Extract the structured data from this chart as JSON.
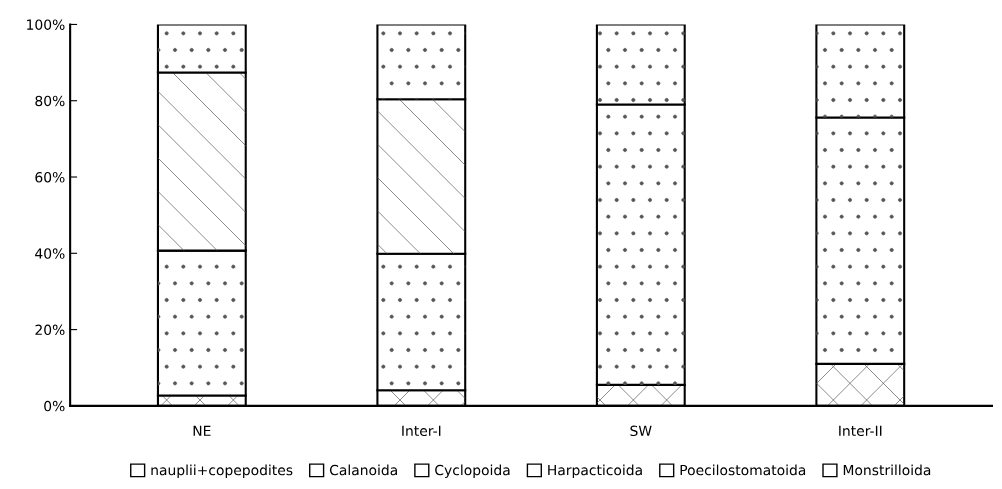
{
  "chart_data": {
    "type": "bar",
    "stacked": true,
    "categories": [
      "NE",
      "Inter-I",
      "SW",
      "Inter-II"
    ],
    "series": [
      {
        "name": "nauplii+copepodites",
        "color": "#ffffff",
        "values": [
          2.7,
          4.1,
          5.5,
          11.0
        ]
      },
      {
        "name": "Calanoida",
        "color": "#ffffff",
        "values": [
          38.0,
          35.8,
          73.5,
          64.6
        ]
      },
      {
        "name": "Cyclopoida",
        "color": "#ffffff",
        "values": [
          46.7,
          40.5,
          0,
          0
        ]
      },
      {
        "name": "Harpacticoida",
        "color": "#ffffff",
        "values": [
          12.6,
          19.6,
          21.0,
          24.4
        ]
      },
      {
        "name": "Poecilostomatoida",
        "color": "#ffffff",
        "values": [
          0,
          0,
          0,
          0
        ]
      },
      {
        "name": "Monstrilloida",
        "color": "#ffffff",
        "values": [
          0,
          0,
          0,
          0
        ]
      }
    ],
    "ylim": [
      0,
      100
    ],
    "yticks": [
      {
        "value": 0,
        "label": "0%"
      },
      {
        "value": 20,
        "label": "20%"
      },
      {
        "value": 40,
        "label": "40%"
      },
      {
        "value": 60,
        "label": "60%"
      },
      {
        "value": 80,
        "label": "80%"
      },
      {
        "value": 100,
        "label": "100%"
      }
    ],
    "grid": false,
    "legend": "bottom"
  }
}
